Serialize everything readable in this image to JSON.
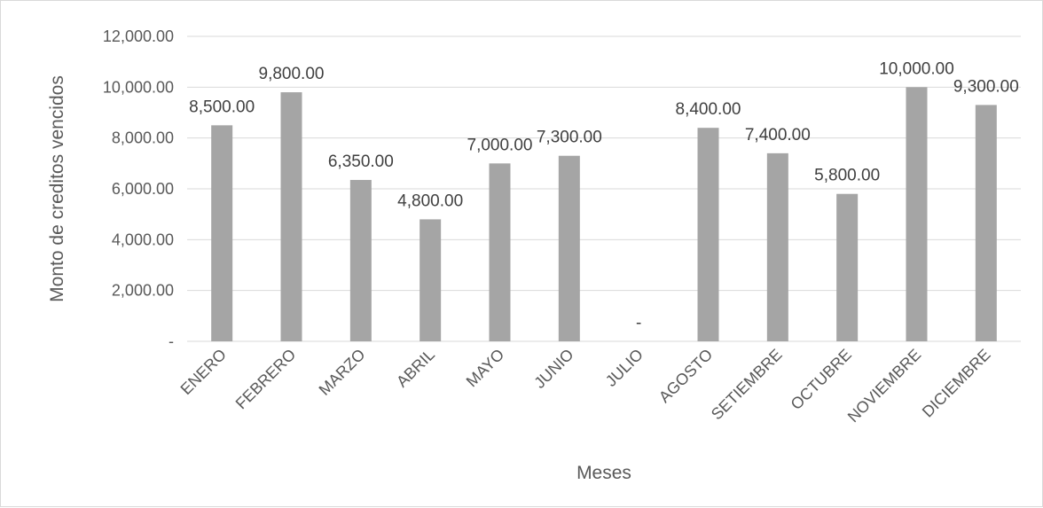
{
  "chart_data": {
    "type": "bar",
    "title": "",
    "xlabel": "Meses",
    "ylabel": "Monto de creditos vencidos",
    "ylim": [
      0,
      12000
    ],
    "yticks": [
      0,
      2000,
      4000,
      6000,
      8000,
      10000,
      12000
    ],
    "ytick_labels": [
      "-",
      "2,000.00",
      "4,000.00",
      "6,000.00",
      "8,000.00",
      "10,000.00",
      "12,000.00"
    ],
    "grid": true,
    "legend": "none",
    "bar_color": "#a5a5a5",
    "categories": [
      "ENERO",
      "FEBRERO",
      "MARZO",
      "ABRIL",
      "MAYO",
      "JUNIO",
      "JULIO",
      "AGOSTO",
      "SETIEMBRE",
      "OCTUBRE",
      "NOVIEMBRE",
      "DICIEMBRE"
    ],
    "values": [
      8500,
      9800,
      6350,
      4800,
      7000,
      7300,
      0,
      8400,
      7400,
      5800,
      10000,
      9300
    ],
    "data_labels": [
      "8,500.00",
      "9,800.00",
      "6,350.00",
      "4,800.00",
      "7,000.00",
      "7,300.00",
      "-",
      "8,400.00",
      "7,400.00",
      "5,800.00",
      "10,000.00",
      "9,300.00"
    ]
  }
}
